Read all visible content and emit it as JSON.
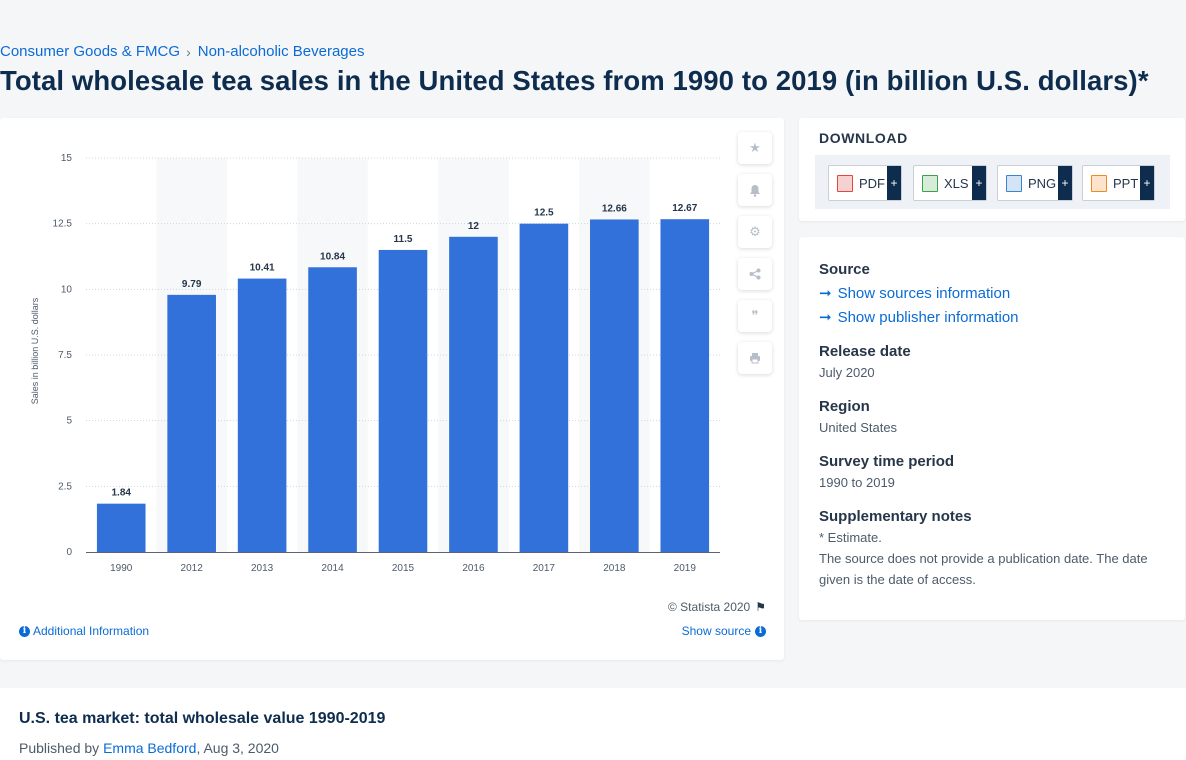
{
  "breadcrumb": {
    "items": [
      "Consumer Goods & FMCG",
      "Non-alcoholic Beverages"
    ],
    "separator": "›"
  },
  "page_title": "Total wholesale tea sales in the United States from 1990 to 2019 (in billion U.S. dollars)*",
  "chart_data": {
    "type": "bar",
    "title": "",
    "categories": [
      "1990",
      "2012",
      "2013",
      "2014",
      "2015",
      "2016",
      "2017",
      "2018",
      "2019"
    ],
    "values": [
      1.84,
      9.79,
      10.41,
      10.84,
      11.5,
      12,
      12.5,
      12.66,
      12.67
    ],
    "data_labels": [
      "1.84",
      "9.79",
      "10.41",
      "10.84",
      "11.5",
      "12",
      "12.5",
      "12.66",
      "12.67"
    ],
    "xlabel": "",
    "ylabel": "Sales in billion U.S. dollars",
    "ylim": [
      0,
      15
    ],
    "yticks": [
      0,
      2.5,
      5,
      7.5,
      10,
      12.5,
      15
    ],
    "ytick_labels": [
      "0",
      "2.5",
      "5",
      "7.5",
      "10",
      "12.5",
      "15"
    ],
    "grid": true,
    "bar_color": "#3171d9"
  },
  "chart_footer": {
    "copyright": "© Statista 2020",
    "additional_info": "Additional Information",
    "show_source": "Show source"
  },
  "toolbar": {
    "icons": [
      "star-icon",
      "bell-icon",
      "gear-icon",
      "share-icon",
      "quote-icon",
      "print-icon"
    ]
  },
  "download": {
    "title": "DOWNLOAD",
    "buttons": [
      {
        "label": "PDF",
        "plus": "+",
        "color": "#e2463f"
      },
      {
        "label": "XLS",
        "plus": "+",
        "color": "#3aa14a"
      },
      {
        "label": "PNG",
        "plus": "+",
        "color": "#3b82d1"
      },
      {
        "label": "PPT",
        "plus": "+",
        "color": "#f08a24"
      }
    ]
  },
  "source_panel": {
    "source_heading": "Source",
    "show_sources": "Show sources information",
    "show_publisher": "Show publisher information",
    "release_heading": "Release date",
    "release_value": "July 2020",
    "region_heading": "Region",
    "region_value": "United States",
    "survey_heading": "Survey time period",
    "survey_value": "1990 to 2019",
    "notes_heading": "Supplementary notes",
    "notes_line1": "* Estimate.",
    "notes_line2": "The source does not provide a publication date. The date given is the date of access."
  },
  "related": {
    "title": "U.S. tea market: total wholesale value 1990-2019",
    "published_by": "Published by",
    "author": "Emma Bedford",
    "date": ", Aug 3, 2020"
  }
}
